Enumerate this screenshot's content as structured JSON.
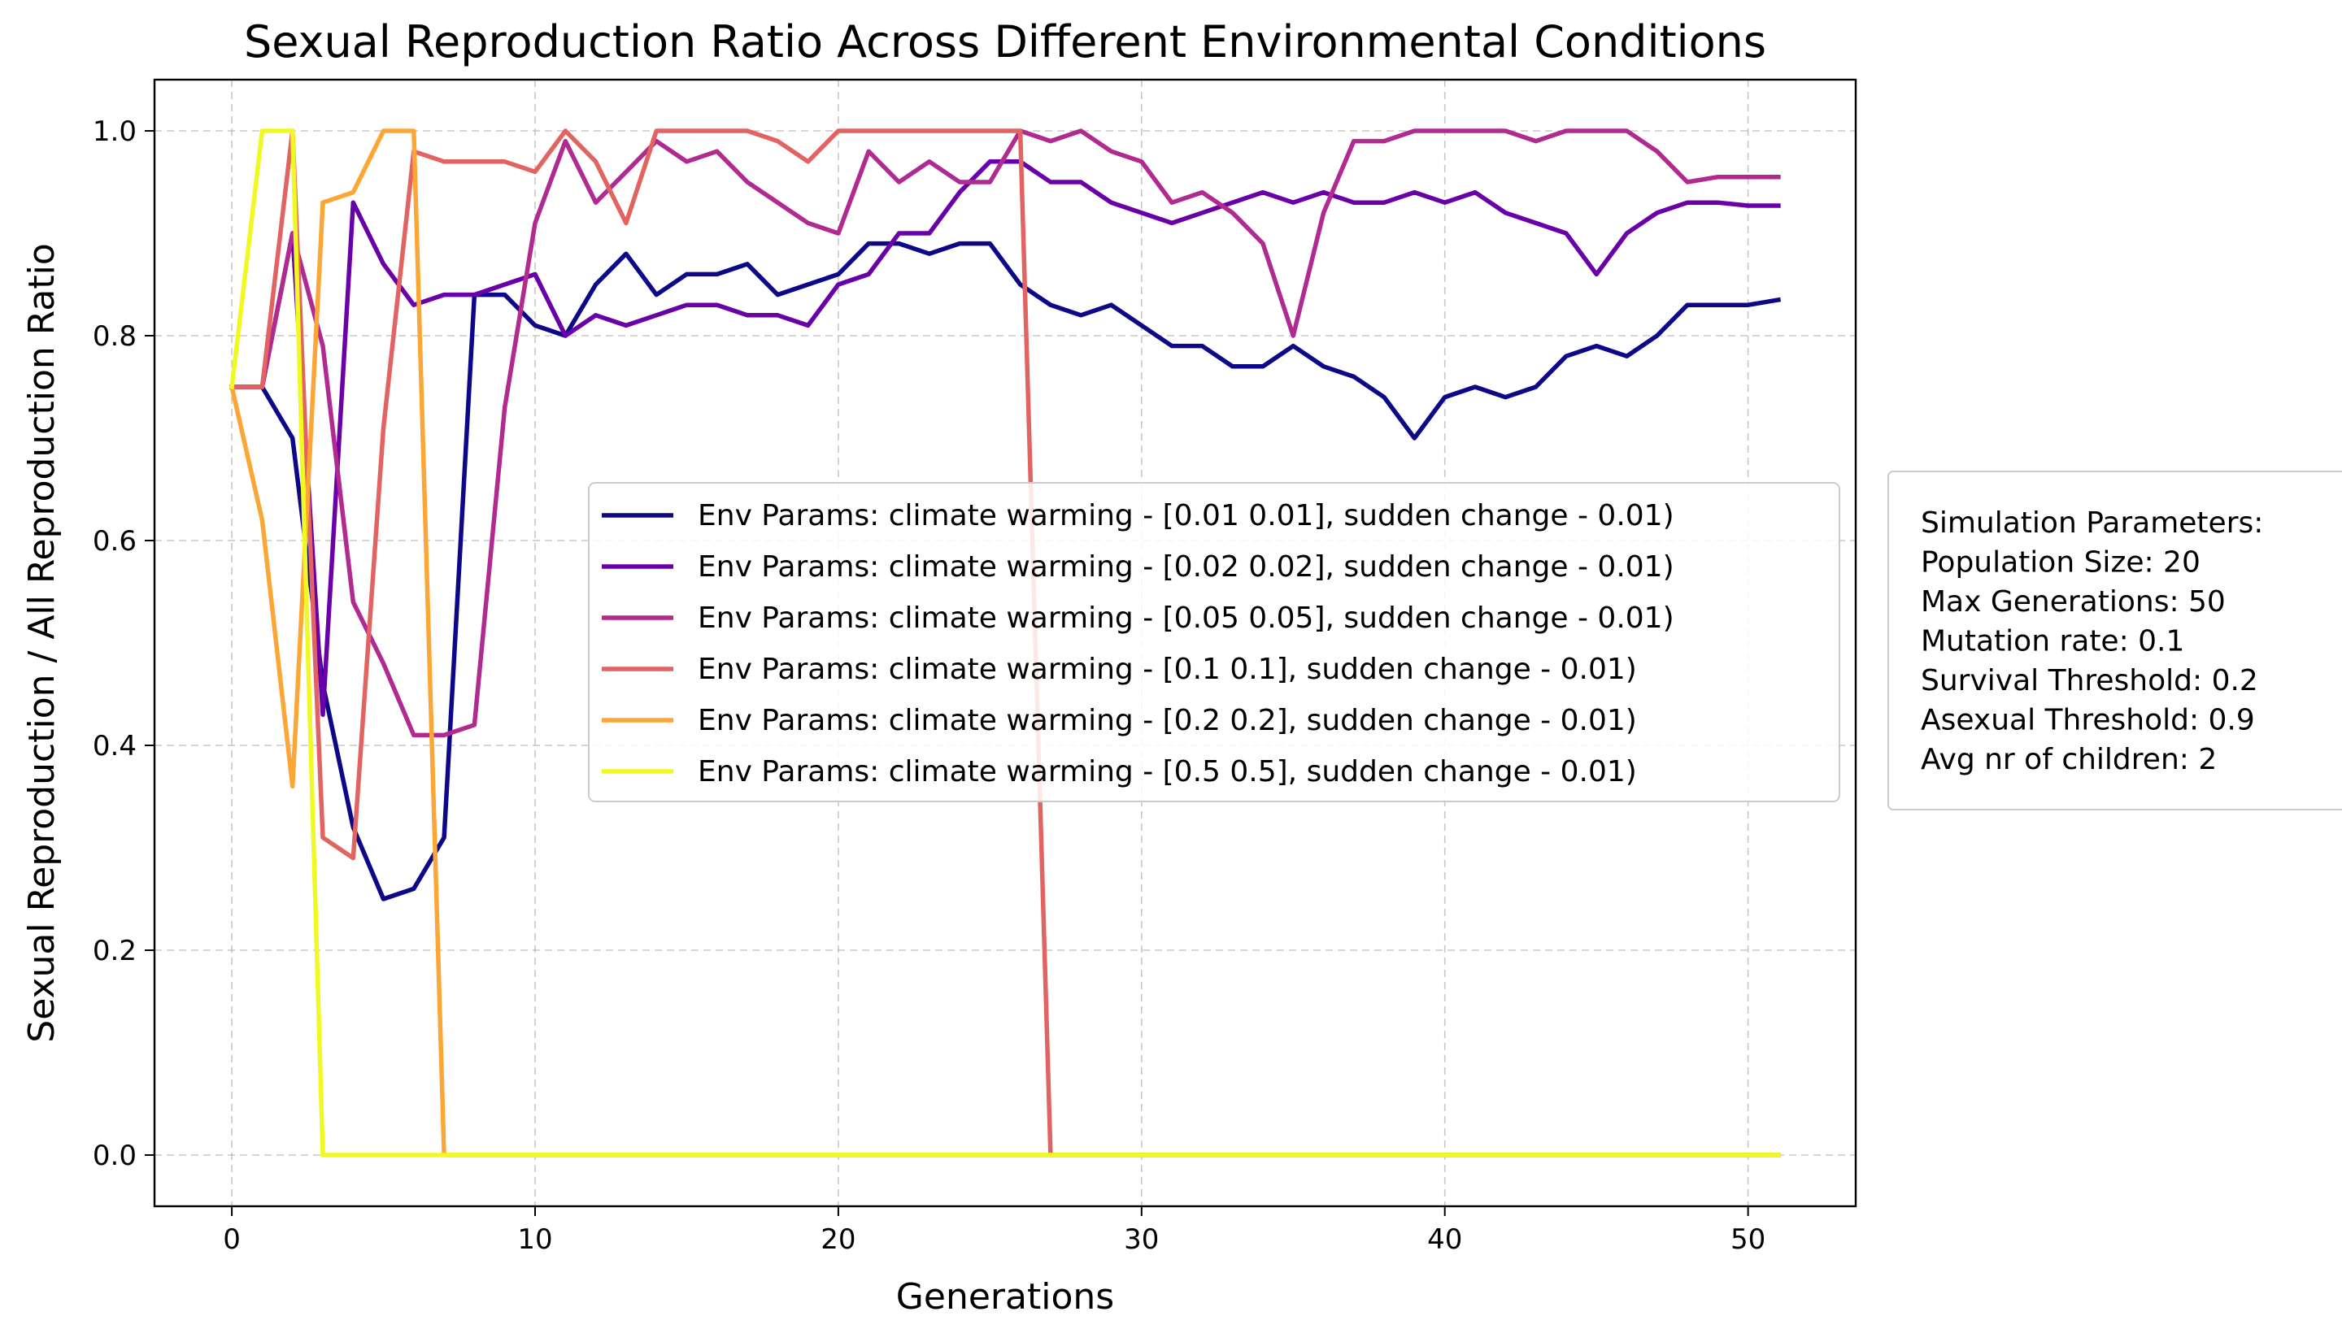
{
  "chart_data": {
    "type": "line",
    "title": "Sexual Reproduction Ratio Across Different Environmental Conditions",
    "xlabel": "Generations",
    "ylabel": "Sexual Reproduction / All Reproduction Ratio",
    "xlim": [
      -2.55,
      53.55
    ],
    "ylim": [
      -0.05,
      1.05
    ],
    "xticks": [
      0,
      10,
      20,
      30,
      40,
      50
    ],
    "xtick_labels": [
      "0",
      "10",
      "20",
      "30",
      "40",
      "50"
    ],
    "yticks": [
      0.0,
      0.2,
      0.4,
      0.6,
      0.8,
      1.0
    ],
    "ytick_labels": [
      "0.0",
      "0.2",
      "0.4",
      "0.6",
      "0.8",
      "1.0"
    ],
    "grid": true,
    "legend_position": "center-right",
    "x": [
      0,
      1,
      2,
      3,
      4,
      5,
      6,
      7,
      8,
      9,
      10,
      11,
      12,
      13,
      14,
      15,
      16,
      17,
      18,
      19,
      20,
      21,
      22,
      23,
      24,
      25,
      26,
      27,
      28,
      29,
      30,
      31,
      32,
      33,
      34,
      35,
      36,
      37,
      38,
      39,
      40,
      41,
      42,
      43,
      44,
      45,
      46,
      47,
      48,
      49,
      50,
      51
    ],
    "series": [
      {
        "name": "Env Params: climate warming - [0.01 0.01], sudden change - 0.01)",
        "color": "#0d0887",
        "values": [
          0.75,
          0.75,
          0.7,
          0.46,
          0.32,
          0.25,
          0.26,
          0.31,
          0.84,
          0.84,
          0.81,
          0.8,
          0.85,
          0.88,
          0.84,
          0.86,
          0.86,
          0.87,
          0.84,
          0.85,
          0.86,
          0.89,
          0.89,
          0.88,
          0.89,
          0.89,
          0.85,
          0.83,
          0.82,
          0.83,
          0.81,
          0.79,
          0.79,
          0.77,
          0.77,
          0.79,
          0.77,
          0.76,
          0.74,
          0.7,
          0.74,
          0.75,
          0.74,
          0.75,
          0.78,
          0.79,
          0.78,
          0.8,
          0.83,
          0.83,
          0.83,
          0.835
        ]
      },
      {
        "name": "Env Params: climate warming - [0.02 0.02], sudden change - 0.01)",
        "color": "#6a00a8",
        "values": [
          0.75,
          0.75,
          0.9,
          0.43,
          0.93,
          0.87,
          0.83,
          0.84,
          0.84,
          0.85,
          0.86,
          0.8,
          0.82,
          0.81,
          0.82,
          0.83,
          0.83,
          0.82,
          0.82,
          0.81,
          0.85,
          0.86,
          0.9,
          0.9,
          0.94,
          0.97,
          0.97,
          0.95,
          0.95,
          0.93,
          0.92,
          0.91,
          0.92,
          0.93,
          0.94,
          0.93,
          0.94,
          0.93,
          0.93,
          0.94,
          0.93,
          0.94,
          0.92,
          0.91,
          0.9,
          0.86,
          0.9,
          0.92,
          0.93,
          0.93,
          0.927,
          0.927
        ]
      },
      {
        "name": "Env Params: climate warming - [0.05 0.05], sudden change - 0.01)",
        "color": "#b12a90",
        "values": [
          0.75,
          0.75,
          0.9,
          0.79,
          0.54,
          0.48,
          0.41,
          0.41,
          0.42,
          0.73,
          0.91,
          0.99,
          0.93,
          0.96,
          0.99,
          0.97,
          0.98,
          0.95,
          0.93,
          0.91,
          0.9,
          0.98,
          0.95,
          0.97,
          0.95,
          0.95,
          1.0,
          0.99,
          1.0,
          0.98,
          0.97,
          0.93,
          0.94,
          0.92,
          0.89,
          0.8,
          0.92,
          0.99,
          0.99,
          1.0,
          1.0,
          1.0,
          1.0,
          0.99,
          1.0,
          1.0,
          1.0,
          0.98,
          0.95,
          0.955,
          0.955,
          0.955
        ]
      },
      {
        "name": "Env Params: climate warming - [0.1 0.1], sudden change - 0.01)",
        "color": "#e16462",
        "values": [
          0.75,
          0.75,
          1.0,
          0.31,
          0.29,
          0.71,
          0.98,
          0.97,
          0.97,
          0.97,
          0.96,
          1.0,
          0.97,
          0.91,
          1.0,
          1.0,
          1.0,
          1.0,
          0.99,
          0.97,
          1.0,
          1.0,
          1.0,
          1.0,
          1.0,
          1.0,
          1.0,
          0.0,
          0.0,
          0.0,
          0.0,
          0.0,
          0.0,
          0.0,
          0.0,
          0.0,
          0.0,
          0.0,
          0.0,
          0.0,
          0.0,
          0.0,
          0.0,
          0.0,
          0.0,
          0.0,
          0.0,
          0.0,
          0.0,
          0.0,
          0.0,
          0.0
        ]
      },
      {
        "name": "Env Params: climate warming - [0.2 0.2], sudden change - 0.01)",
        "color": "#fca636",
        "values": [
          0.75,
          0.62,
          0.36,
          0.93,
          0.94,
          1.0,
          1.0,
          0.0,
          0.0,
          0.0,
          0.0,
          0.0,
          0.0,
          0.0,
          0.0,
          0.0,
          0.0,
          0.0,
          0.0,
          0.0,
          0.0,
          0.0,
          0.0,
          0.0,
          0.0,
          0.0,
          0.0,
          0.0,
          0.0,
          0.0,
          0.0,
          0.0,
          0.0,
          0.0,
          0.0,
          0.0,
          0.0,
          0.0,
          0.0,
          0.0,
          0.0,
          0.0,
          0.0,
          0.0,
          0.0,
          0.0,
          0.0,
          0.0,
          0.0,
          0.0,
          0.0,
          0.0
        ]
      },
      {
        "name": "Env Params: climate warming - [0.5 0.5], sudden change - 0.01)",
        "color": "#f0f921",
        "values": [
          0.75,
          1.0,
          1.0,
          0.0,
          0.0,
          0.0,
          0.0,
          0.0,
          0.0,
          0.0,
          0.0,
          0.0,
          0.0,
          0.0,
          0.0,
          0.0,
          0.0,
          0.0,
          0.0,
          0.0,
          0.0,
          0.0,
          0.0,
          0.0,
          0.0,
          0.0,
          0.0,
          0.0,
          0.0,
          0.0,
          0.0,
          0.0,
          0.0,
          0.0,
          0.0,
          0.0,
          0.0,
          0.0,
          0.0,
          0.0,
          0.0,
          0.0,
          0.0,
          0.0,
          0.0,
          0.0,
          0.0,
          0.0,
          0.0,
          0.0,
          0.0,
          0.0
        ]
      }
    ],
    "annotation_box": {
      "lines": [
        "Simulation Parameters:",
        "Population Size: 20",
        "Max Generations: 50",
        "Mutation rate: 0.1",
        "Survival Threshold: 0.2",
        "Asexual Threshold: 0.9",
        "Avg nr of children: 2"
      ]
    }
  }
}
